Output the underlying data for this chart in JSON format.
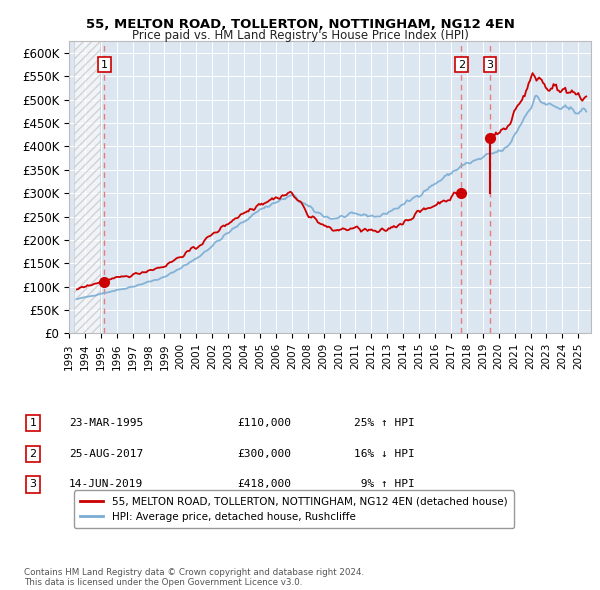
{
  "title": "55, MELTON ROAD, TOLLERTON, NOTTINGHAM, NG12 4EN",
  "subtitle": "Price paid vs. HM Land Registry's House Price Index (HPI)",
  "sale_labels": [
    "1",
    "2",
    "3"
  ],
  "sale_decimal": [
    1995.23,
    2017.65,
    2019.46
  ],
  "sale_prices": [
    110000,
    300000,
    418000
  ],
  "legend_line1": "55, MELTON ROAD, TOLLERTON, NOTTINGHAM, NG12 4EN (detached house)",
  "legend_line2": "HPI: Average price, detached house, Rushcliffe",
  "footer": "Contains HM Land Registry data © Crown copyright and database right 2024.\nThis data is licensed under the Open Government Licence v3.0.",
  "hpi_color": "#7aadd4",
  "price_color": "#cc0000",
  "dashed_color": "#e87070",
  "background_plot": "#dce6f1",
  "background_fig": "#ffffff",
  "ylim": [
    0,
    625000
  ],
  "xlim_start": 1993.3,
  "xlim_end": 2025.8,
  "yticks": [
    0,
    50000,
    100000,
    150000,
    200000,
    250000,
    300000,
    350000,
    400000,
    450000,
    500000,
    550000,
    600000
  ],
  "ytick_labels": [
    "£0",
    "£50K",
    "£100K",
    "£150K",
    "£200K",
    "£250K",
    "£300K",
    "£350K",
    "£400K",
    "£450K",
    "£500K",
    "£550K",
    "£600K"
  ],
  "table_rows": [
    [
      "1",
      "23-MAR-1995",
      "£110,000",
      "25% ↑ HPI"
    ],
    [
      "2",
      "25-AUG-2017",
      "£300,000",
      "16% ↓ HPI"
    ],
    [
      "3",
      "14-JUN-2019",
      "£418,000",
      " 9% ↑ HPI"
    ]
  ]
}
